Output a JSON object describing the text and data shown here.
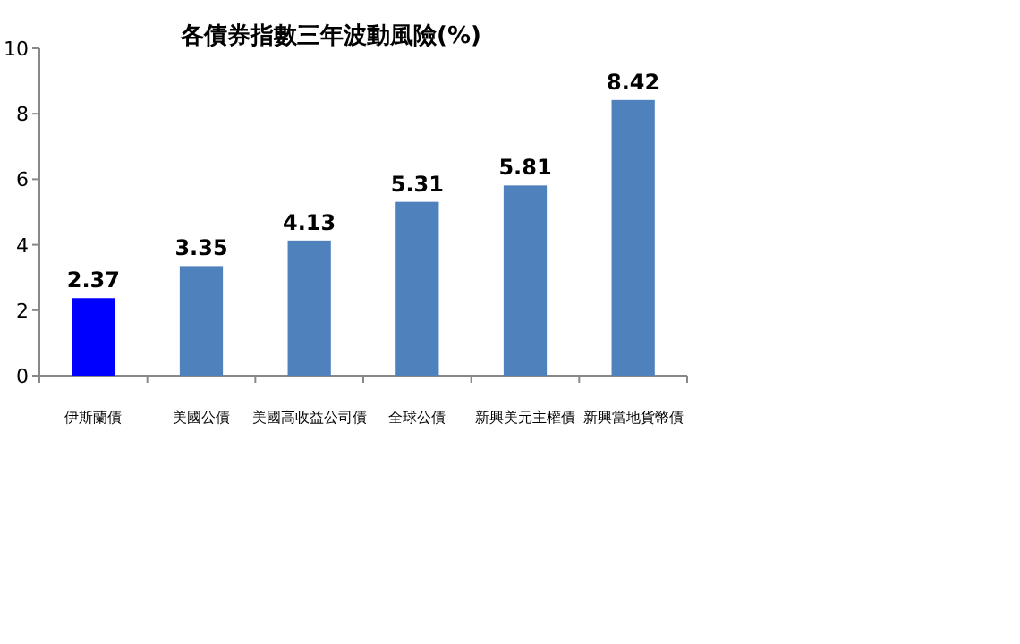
{
  "chart_data": {
    "type": "bar",
    "title": "各債券指數三年波動風險(%)",
    "categories": [
      "伊斯蘭債",
      "美國公債",
      "美國高收益公司債",
      "全球公債",
      "新興美元主權債",
      "新興當地貨幣債"
    ],
    "values": [
      2.37,
      3.35,
      4.13,
      5.31,
      5.81,
      8.42
    ],
    "colors": [
      "#0000ff",
      "#4f81bd",
      "#4f81bd",
      "#4f81bd",
      "#4f81bd",
      "#4f81bd"
    ],
    "ylim": [
      0,
      10
    ],
    "yticks": [
      0,
      2,
      4,
      6,
      8,
      10
    ],
    "data_labels": true,
    "grid": false
  }
}
